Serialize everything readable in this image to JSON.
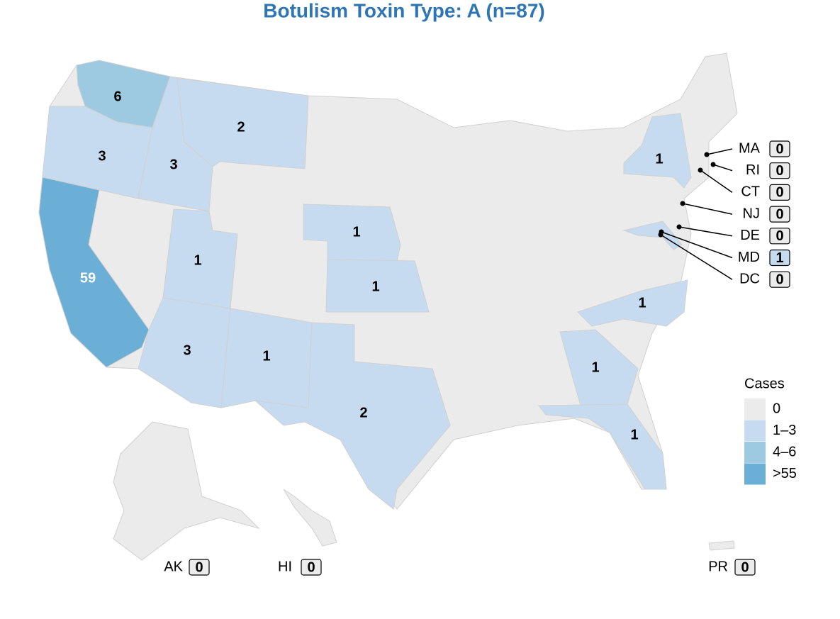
{
  "title": "Botulism Toxin Type: A (n=87)",
  "states": [
    {
      "value": 6,
      "color": "#9ecae1"
    },
    {
      "value": 3,
      "color": "#c6dbef"
    },
    {
      "value": 59,
      "color": "#6baed6"
    },
    {
      "value": 3,
      "color": "#c6dbef"
    },
    {
      "value": 2,
      "color": "#c6dbef"
    },
    {
      "value": 1,
      "color": "#c6dbef"
    },
    {
      "value": 3,
      "color": "#c6dbef"
    },
    {
      "value": 1,
      "color": "#c6dbef"
    },
    {
      "value": 2,
      "color": "#c6dbef"
    },
    {
      "value": 1,
      "color": "#c6dbef"
    },
    {
      "value": 1,
      "color": "#c6dbef"
    },
    {
      "value": 1,
      "color": "#c6dbef"
    },
    {
      "value": 1,
      "color": "#c6dbef"
    },
    {
      "value": 1,
      "color": "#c6dbef"
    },
    {
      "value": 1,
      "color": "#c6dbef"
    }
  ],
  "callouts": [
    {
      "label": "MA",
      "value": 0,
      "color": "#ebebeb"
    },
    {
      "label": "RI",
      "value": 0,
      "color": "#ebebeb"
    },
    {
      "label": "CT",
      "value": 0,
      "color": "#ebebeb"
    },
    {
      "label": "NJ",
      "value": 0,
      "color": "#ebebeb"
    },
    {
      "label": "DE",
      "value": 0,
      "color": "#ebebeb"
    },
    {
      "label": "MD",
      "value": 1,
      "color": "#c6dbef"
    },
    {
      "label": "DC",
      "value": 0,
      "color": "#ebebeb"
    }
  ],
  "insets": [
    {
      "label": "AK",
      "value": 0,
      "color": "#ebebeb"
    },
    {
      "label": "HI",
      "value": 0,
      "color": "#ebebeb"
    },
    {
      "label": "PR",
      "value": 0,
      "color": "#ebebeb"
    }
  ],
  "legend": {
    "title": "Cases",
    "items": [
      {
        "label": "0",
        "color": "#ebebeb"
      },
      {
        "label": "1–3",
        "color": "#c6dbef"
      },
      {
        "label": "4–6",
        "color": "#9ecae1"
      },
      {
        "label": ">55",
        "color": "#6baed6"
      }
    ]
  }
}
